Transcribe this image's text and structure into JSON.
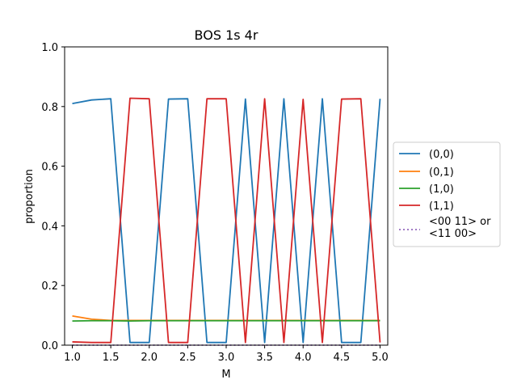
{
  "chart_data": {
    "type": "line",
    "title": "BOS 1s 4r",
    "xlabel": "M",
    "ylabel": "proportion",
    "xlim": [
      0.9,
      5.1
    ],
    "ylim": [
      0.0,
      1.0
    ],
    "xticks": [
      "1.0",
      "1.5",
      "2.0",
      "2.5",
      "3.0",
      "3.5",
      "4.0",
      "4.5",
      "5.0"
    ],
    "yticks": [
      "0.0",
      "0.2",
      "0.4",
      "0.6",
      "0.8",
      "1.0"
    ],
    "grid": false,
    "legend_position": "outside-right",
    "x": [
      1.0,
      1.25,
      1.5,
      1.75,
      2.0,
      2.25,
      2.5,
      2.75,
      3.0,
      3.25,
      3.5,
      3.75,
      4.0,
      4.25,
      4.5,
      4.75,
      5.0
    ],
    "series": [
      {
        "name": "(0,0)",
        "color": "#1f77b4",
        "style": "solid",
        "values": [
          0.81,
          0.822,
          0.826,
          0.009,
          0.009,
          0.825,
          0.826,
          0.009,
          0.009,
          0.825,
          0.009,
          0.826,
          0.009,
          0.826,
          0.009,
          0.009,
          0.826
        ]
      },
      {
        "name": "(0,1)",
        "color": "#ff7f0e",
        "style": "solid",
        "values": [
          0.098,
          0.087,
          0.083,
          0.083,
          0.083,
          0.083,
          0.083,
          0.083,
          0.083,
          0.083,
          0.083,
          0.083,
          0.083,
          0.083,
          0.083,
          0.083,
          0.083
        ]
      },
      {
        "name": "(1,0)",
        "color": "#2ca02c",
        "style": "solid",
        "values": [
          0.081,
          0.082,
          0.082,
          0.081,
          0.082,
          0.082,
          0.082,
          0.082,
          0.082,
          0.082,
          0.082,
          0.082,
          0.082,
          0.082,
          0.082,
          0.082,
          0.082
        ]
      },
      {
        "name": "(1,1)",
        "color": "#d62728",
        "style": "solid",
        "values": [
          0.011,
          0.009,
          0.009,
          0.828,
          0.826,
          0.009,
          0.009,
          0.826,
          0.826,
          0.009,
          0.826,
          0.009,
          0.824,
          0.009,
          0.825,
          0.826,
          0.009
        ]
      },
      {
        "name": "<00 11> or\n<11 00>",
        "color": "#9467bd",
        "style": "dotted",
        "values": [
          0,
          0,
          0,
          0,
          0,
          0,
          0,
          0,
          0,
          0,
          0,
          0,
          0,
          0,
          0,
          0,
          0
        ]
      }
    ]
  }
}
